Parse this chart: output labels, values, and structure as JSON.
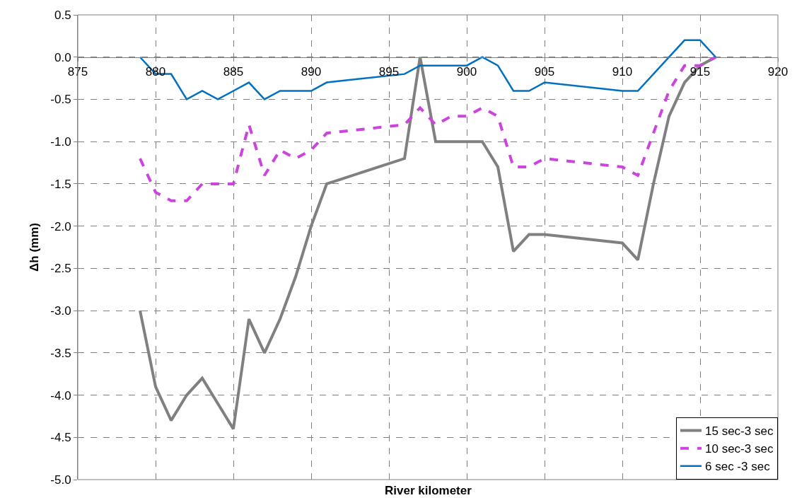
{
  "chart_data": {
    "type": "line",
    "xlabel": "River kilometer",
    "ylabel": "Δh (mm)",
    "xlim": [
      875,
      920
    ],
    "xticks": [
      875,
      880,
      885,
      890,
      895,
      900,
      905,
      910,
      915,
      920
    ],
    "ylim": [
      -5.0,
      0.5
    ],
    "yticks": [
      {
        "value": 0.5,
        "label": "0.5"
      },
      {
        "value": 0,
        "label": "0.0"
      },
      {
        "value": -0.5,
        "label": "-0.5"
      },
      {
        "value": -1,
        "label": "-1.0"
      },
      {
        "value": -1.5,
        "label": "-1.5"
      },
      {
        "value": -2,
        "label": "-2.0"
      },
      {
        "value": -2.5,
        "label": "-2.5"
      },
      {
        "value": -3,
        "label": "-3.0"
      },
      {
        "value": -3.5,
        "label": "-3.5"
      },
      {
        "value": -4,
        "label": "-4.0"
      },
      {
        "value": -4.5,
        "label": "-4.5"
      },
      {
        "value": -5,
        "label": "-5.0"
      }
    ],
    "grid": true,
    "legend": "bottom right",
    "marker": "none",
    "series": [
      {
        "name": "15 sec-3 sec",
        "color": "#808080",
        "line_style": "solid",
        "x": [
          879,
          880,
          881,
          882,
          883,
          884,
          885,
          886,
          887,
          888,
          889,
          890,
          891,
          896,
          897,
          898,
          900,
          901,
          902,
          903,
          904,
          905,
          910,
          911,
          912,
          913,
          914,
          915,
          916
        ],
        "values": [
          -3.0,
          -3.9,
          -4.3,
          -4.0,
          -3.8,
          -4.1,
          -4.4,
          -3.1,
          -3.5,
          -3.1,
          -2.6,
          -2.0,
          -1.5,
          -1.2,
          0.0,
          -1.0,
          -1.0,
          -1.0,
          -1.3,
          -2.3,
          -2.1,
          -2.1,
          -2.2,
          -2.4,
          -1.5,
          -0.7,
          -0.3,
          -0.1,
          0.0
        ]
      },
      {
        "name": "10 sec-3 sec",
        "color": "#cc44dd",
        "line_style": "dashed",
        "x": [
          879,
          880,
          881,
          882,
          883,
          884,
          885,
          886,
          887,
          888,
          889,
          890,
          891,
          896,
          897,
          898,
          899,
          900,
          901,
          902,
          903,
          904,
          905,
          910,
          911,
          912,
          913,
          914,
          915,
          916
        ],
        "values": [
          -1.2,
          -1.6,
          -1.7,
          -1.7,
          -1.5,
          -1.5,
          -1.5,
          -0.8,
          -1.4,
          -1.1,
          -1.2,
          -1.1,
          -0.9,
          -0.8,
          -0.6,
          -0.8,
          -0.7,
          -0.7,
          -0.6,
          -0.7,
          -1.3,
          -1.3,
          -1.2,
          -1.3,
          -1.4,
          -0.9,
          -0.4,
          -0.1,
          -0.1,
          0.0
        ]
      },
      {
        "name": "6 sec -3 sec",
        "color": "#0070c0",
        "line_style": "solid",
        "x": [
          879,
          880,
          881,
          882,
          883,
          884,
          885,
          886,
          887,
          888,
          889,
          890,
          891,
          896,
          897,
          898,
          900,
          901,
          902,
          903,
          904,
          905,
          910,
          911,
          914,
          915,
          916
        ],
        "values": [
          0.0,
          -0.2,
          -0.2,
          -0.5,
          -0.4,
          -0.5,
          -0.4,
          -0.3,
          -0.5,
          -0.4,
          -0.4,
          -0.4,
          -0.3,
          -0.2,
          -0.1,
          -0.1,
          -0.1,
          0.0,
          -0.1,
          -0.4,
          -0.4,
          -0.3,
          -0.4,
          -0.4,
          0.2,
          0.2,
          0.0
        ]
      }
    ]
  }
}
